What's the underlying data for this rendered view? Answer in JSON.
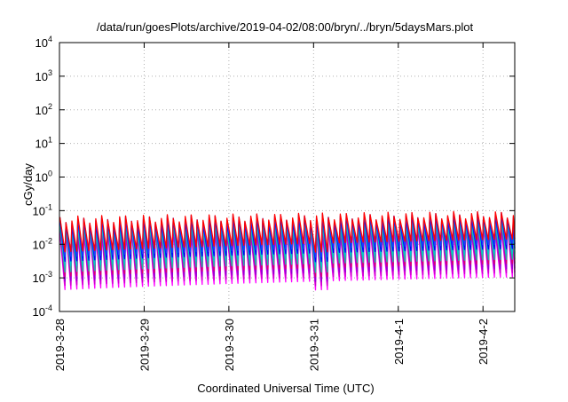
{
  "chart_data": {
    "type": "line",
    "title": "/data/run/goesPlots/archive/2019-04-02/08:00/bryn/../bryn/5daysMars.plot",
    "xlabel": "Coordinated Universal Time (UTC)",
    "ylabel": "cGy/day",
    "y_scale": "log",
    "ylim": [
      0.0001,
      10000
    ],
    "xlim": [
      "2019-03-28",
      "2019-04-02 09:00"
    ],
    "grid": true,
    "legend": "none",
    "y_ticks": [
      {
        "value": 0.0001,
        "base": "10",
        "exp": "-4"
      },
      {
        "value": 0.001,
        "base": "10",
        "exp": "-3"
      },
      {
        "value": 0.01,
        "base": "10",
        "exp": "-2"
      },
      {
        "value": 0.1,
        "base": "10",
        "exp": "-1"
      },
      {
        "value": 1,
        "base": "10",
        "exp": "0"
      },
      {
        "value": 10,
        "base": "10",
        "exp": "1"
      },
      {
        "value": 100,
        "base": "10",
        "exp": "2"
      },
      {
        "value": 1000,
        "base": "10",
        "exp": "3"
      },
      {
        "value": 10000,
        "base": "10",
        "exp": "4"
      }
    ],
    "x_ticks": [
      {
        "value": "2019-03-28",
        "label": "2019-3-28"
      },
      {
        "value": "2019-03-29",
        "label": "2019-3-29"
      },
      {
        "value": "2019-03-30",
        "label": "2019-3-30"
      },
      {
        "value": "2019-03-31",
        "label": "2019-3-31"
      },
      {
        "value": "2019-04-01",
        "label": "2019-4-1"
      },
      {
        "value": "2019-04-02",
        "label": "2019-4-2"
      }
    ],
    "sawtooth": {
      "cycles_per_day": 14.2,
      "peak_base": [
        0.06,
        0.085
      ],
      "trough_base": [
        0.0025,
        0.006
      ],
      "notch": {
        "date": "2019-03-31",
        "factor": 0.55
      }
    },
    "series": [
      {
        "color": "#ff00ff",
        "peak_scale": 0.42,
        "trough_scale": 0.18
      },
      {
        "color": "#cc00cc",
        "peak_scale": 0.5,
        "trough_scale": 0.24
      },
      {
        "color": "#9400d3",
        "peak_scale": 0.6,
        "trough_scale": 0.32
      },
      {
        "color": "#e0006e",
        "peak_scale": 0.75,
        "trough_scale": 0.45
      },
      {
        "color": "#20b2aa",
        "peak_scale": 0.62,
        "trough_scale": 0.6
      },
      {
        "color": "#00c8c8",
        "peak_scale": 0.8,
        "trough_scale": 0.9
      },
      {
        "color": "#0000ff",
        "peak_scale": 0.95,
        "trough_scale": 1.25
      },
      {
        "color": "#1e3cff",
        "peak_scale": 1.08,
        "trough_scale": 1.7
      },
      {
        "color": "#ff0000",
        "peak_scale": 1.15,
        "trough_scale": 2.4
      }
    ]
  }
}
